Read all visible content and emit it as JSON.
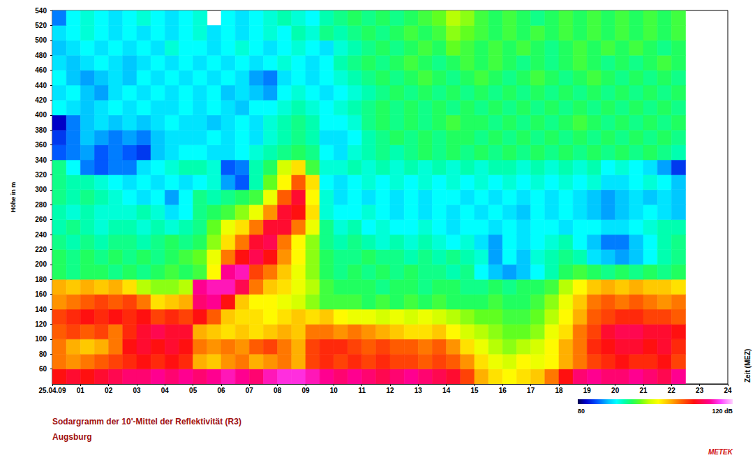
{
  "chart_data": {
    "type": "heatmap",
    "title": "Sodargramm der 10'-Mittel der Reflektivität (R3)",
    "subtitle": "Augsburg",
    "x_label": "Zeit (MEZ)",
    "y_label": "Höhe in m",
    "annotations": [
      "METEK"
    ],
    "grid": false,
    "xlim": [
      0,
      24
    ],
    "xticks": [
      {
        "value": 0,
        "label": "25.04.09"
      },
      {
        "value": 1,
        "label": "01"
      },
      {
        "value": 2,
        "label": "02"
      },
      {
        "value": 3,
        "label": "03"
      },
      {
        "value": 4,
        "label": "04"
      },
      {
        "value": 5,
        "label": "05"
      },
      {
        "value": 6,
        "label": "06"
      },
      {
        "value": 7,
        "label": "07"
      },
      {
        "value": 8,
        "label": "08"
      },
      {
        "value": 9,
        "label": "09"
      },
      10,
      11,
      12,
      13,
      14,
      15,
      16,
      17,
      18,
      19,
      20,
      21,
      22,
      23,
      24
    ],
    "ylim": [
      40,
      540
    ],
    "yticks": [
      60,
      80,
      100,
      120,
      140,
      160,
      180,
      200,
      220,
      240,
      260,
      280,
      300,
      320,
      340,
      360,
      380,
      400,
      420,
      440,
      460,
      480,
      500,
      520,
      540
    ],
    "colorbar": {
      "range": [
        80,
        120
      ],
      "ticks": [
        80,
        {
          "value": 120,
          "label": "120 dB"
        }
      ]
    },
    "x": [
      0,
      0.5,
      1,
      1.5,
      2,
      2.5,
      3,
      3.5,
      4,
      4.5,
      5,
      5.5,
      6,
      6.5,
      7,
      7.5,
      8,
      8.5,
      9,
      9.5,
      10,
      10.5,
      11,
      11.5,
      12,
      12.5,
      13,
      13.5,
      14,
      14.5,
      15,
      15.5,
      16,
      16.5,
      17,
      17.5,
      18,
      18.5,
      19,
      19.5,
      20,
      20.5,
      21,
      21.5,
      22
    ],
    "y": [
      40,
      60,
      80,
      100,
      120,
      140,
      160,
      180,
      200,
      220,
      240,
      260,
      280,
      300,
      320,
      340,
      360,
      380,
      400,
      420,
      440,
      460,
      480,
      500,
      520
    ],
    "values": [
      [
        110,
        111,
        110,
        111,
        112,
        113,
        113,
        114,
        113,
        114,
        113,
        114,
        115,
        114,
        113,
        115,
        116,
        116,
        115,
        114,
        113,
        114,
        113,
        112,
        113,
        114,
        113,
        112,
        111,
        108,
        104,
        102,
        101,
        102,
        103,
        106,
        110,
        113,
        114,
        113,
        113,
        114,
        113,
        112,
        114
      ],
      [
        106,
        105,
        106,
        107,
        108,
        109,
        110,
        109,
        110,
        109,
        104,
        103,
        105,
        106,
        104,
        105,
        106,
        104,
        108,
        109,
        108,
        109,
        108,
        109,
        108,
        108,
        107,
        108,
        107,
        105,
        102,
        100,
        99,
        101,
        100,
        101,
        104,
        106,
        108,
        109,
        110,
        109,
        109,
        110,
        108
      ],
      [
        106,
        104,
        103,
        104,
        106,
        110,
        111,
        110,
        111,
        110,
        106,
        105,
        106,
        105,
        107,
        108,
        106,
        104,
        108,
        109,
        109,
        108,
        107,
        108,
        107,
        107,
        106,
        107,
        105,
        102,
        100,
        98,
        97,
        98,
        99,
        101,
        104,
        106,
        109,
        110,
        111,
        111,
        110,
        111,
        109
      ],
      [
        107,
        108,
        107,
        108,
        106,
        109,
        111,
        112,
        111,
        111,
        104,
        103,
        102,
        103,
        102,
        103,
        104,
        103,
        106,
        106,
        105,
        106,
        105,
        104,
        103,
        102,
        102,
        103,
        101,
        99,
        98,
        97,
        96,
        96,
        97,
        100,
        102,
        106,
        108,
        111,
        112,
        112,
        111,
        111,
        110
      ],
      [
        108,
        109,
        110,
        109,
        110,
        109,
        110,
        108,
        109,
        108,
        110,
        107,
        103,
        102,
        102,
        101,
        102,
        103,
        102,
        103,
        101,
        100,
        100,
        99,
        100,
        99,
        100,
        99,
        98,
        97,
        96,
        96,
        95,
        95,
        96,
        98,
        101,
        104,
        107,
        108,
        109,
        109,
        108,
        108,
        107
      ],
      [
        105,
        106,
        107,
        108,
        107,
        108,
        106,
        102,
        103,
        104,
        113,
        114,
        110,
        103,
        101,
        101,
        100,
        99,
        97,
        95,
        95,
        95,
        94,
        95,
        94,
        95,
        94,
        95,
        94,
        94,
        94,
        95,
        94,
        94,
        95,
        97,
        100,
        103,
        106,
        107,
        106,
        107,
        106,
        105,
        106
      ],
      [
        104,
        103,
        104,
        103,
        104,
        102,
        98,
        97,
        97,
        98,
        114,
        115,
        115,
        112,
        106,
        103,
        102,
        100,
        98,
        95,
        94,
        94,
        94,
        93,
        94,
        94,
        93,
        94,
        94,
        93,
        93,
        94,
        93,
        94,
        94,
        95,
        98,
        101,
        103,
        104,
        103,
        104,
        103,
        103,
        102
      ],
      [
        94,
        93,
        94,
        94,
        93,
        94,
        93,
        94,
        95,
        94,
        95,
        101,
        114,
        115,
        108,
        106,
        103,
        100,
        97,
        94,
        93,
        94,
        93,
        94,
        93,
        94,
        93,
        93,
        92,
        93,
        90,
        88,
        87,
        88,
        90,
        92,
        94,
        95,
        94,
        93,
        94,
        93,
        94,
        93,
        94
      ],
      [
        94,
        93,
        94,
        93,
        94,
        93,
        94,
        93,
        94,
        95,
        96,
        100,
        106,
        110,
        112,
        110,
        105,
        101,
        97,
        94,
        93,
        93,
        94,
        93,
        93,
        92,
        93,
        92,
        93,
        92,
        91,
        87,
        90,
        88,
        91,
        92,
        93,
        92,
        89,
        88,
        87,
        88,
        90,
        92,
        93
      ],
      [
        93,
        92,
        93,
        92,
        93,
        93,
        92,
        93,
        94,
        93,
        94,
        97,
        102,
        106,
        111,
        112,
        106,
        101,
        97,
        93,
        92,
        93,
        92,
        91,
        92,
        91,
        92,
        91,
        90,
        91,
        89,
        87,
        90,
        89,
        90,
        91,
        92,
        90,
        88,
        86,
        86,
        88,
        90,
        92,
        93
      ],
      [
        92,
        93,
        92,
        91,
        92,
        92,
        91,
        92,
        91,
        92,
        93,
        96,
        100,
        102,
        106,
        111,
        111,
        106,
        100,
        93,
        91,
        92,
        90,
        91,
        90,
        90,
        91,
        90,
        89,
        90,
        90,
        89,
        90,
        89,
        90,
        90,
        89,
        90,
        90,
        89,
        89,
        90,
        91,
        92,
        92
      ],
      [
        92,
        91,
        92,
        91,
        91,
        91,
        92,
        91,
        89,
        90,
        93,
        94,
        95,
        97,
        100,
        105,
        111,
        110,
        102,
        91,
        90,
        90,
        91,
        90,
        89,
        90,
        89,
        90,
        89,
        90,
        89,
        90,
        89,
        88,
        90,
        89,
        90,
        89,
        88,
        87,
        88,
        89,
        90,
        89,
        88
      ],
      [
        93,
        92,
        93,
        92,
        91,
        90,
        89,
        90,
        87,
        90,
        93,
        92,
        93,
        94,
        95,
        100,
        107,
        111,
        101,
        91,
        89,
        90,
        89,
        90,
        89,
        90,
        89,
        90,
        90,
        89,
        90,
        89,
        90,
        89,
        90,
        89,
        90,
        89,
        88,
        87,
        88,
        89,
        88,
        89,
        88
      ],
      [
        93,
        92,
        92,
        91,
        90,
        89,
        90,
        89,
        90,
        89,
        90,
        91,
        87,
        85,
        92,
        96,
        101,
        107,
        102,
        90,
        89,
        90,
        91,
        90,
        91,
        90,
        91,
        90,
        91,
        90,
        91,
        90,
        91,
        90,
        91,
        90,
        91,
        90,
        91,
        89,
        89,
        90,
        91,
        90,
        88
      ],
      [
        93,
        90,
        86,
        85,
        86,
        86,
        89,
        90,
        91,
        92,
        92,
        91,
        85,
        86,
        92,
        94,
        99,
        102,
        95,
        91,
        91,
        92,
        91,
        92,
        91,
        92,
        91,
        92,
        91,
        92,
        91,
        92,
        92,
        91,
        92,
        91,
        92,
        91,
        92,
        90,
        91,
        90,
        89,
        87,
        84
      ],
      [
        85,
        86,
        87,
        85,
        86,
        85,
        84,
        88,
        89,
        90,
        90,
        89,
        89,
        90,
        91,
        92,
        93,
        94,
        93,
        90,
        89,
        91,
        92,
        93,
        92,
        93,
        94,
        93,
        94,
        93,
        94,
        93,
        94,
        93,
        94,
        93,
        94,
        93,
        94,
        93,
        94,
        93,
        94,
        93,
        92
      ],
      [
        84,
        86,
        88,
        87,
        86,
        87,
        86,
        88,
        89,
        89,
        89,
        90,
        89,
        90,
        89,
        91,
        92,
        93,
        92,
        89,
        89,
        90,
        92,
        93,
        94,
        93,
        94,
        93,
        94,
        94,
        93,
        94,
        93,
        94,
        93,
        94,
        93,
        94,
        93,
        94,
        93,
        94,
        93,
        94,
        93
      ],
      [
        82,
        86,
        88,
        89,
        88,
        89,
        88,
        89,
        90,
        89,
        89,
        88,
        89,
        90,
        89,
        91,
        92,
        93,
        92,
        90,
        90,
        91,
        93,
        94,
        93,
        94,
        93,
        94,
        95,
        94,
        94,
        93,
        94,
        93,
        94,
        93,
        94,
        95,
        94,
        93,
        94,
        93,
        94,
        93,
        94
      ],
      [
        90,
        89,
        88,
        89,
        90,
        89,
        90,
        89,
        89,
        90,
        89,
        90,
        89,
        88,
        90,
        90,
        91,
        92,
        91,
        90,
        91,
        92,
        93,
        94,
        93,
        94,
        93,
        94,
        93,
        94,
        93,
        94,
        93,
        94,
        93,
        94,
        93,
        94,
        93,
        94,
        93,
        94,
        93,
        94,
        93
      ],
      [
        89,
        90,
        88,
        87,
        89,
        90,
        89,
        90,
        89,
        90,
        89,
        90,
        88,
        89,
        88,
        87,
        90,
        91,
        90,
        89,
        90,
        91,
        92,
        93,
        94,
        93,
        94,
        93,
        94,
        93,
        94,
        93,
        94,
        93,
        94,
        93,
        94,
        93,
        94,
        93,
        94,
        93,
        94,
        93,
        94
      ],
      [
        90,
        88,
        87,
        88,
        89,
        88,
        90,
        89,
        90,
        89,
        90,
        89,
        90,
        89,
        87,
        86,
        89,
        90,
        89,
        90,
        91,
        92,
        93,
        94,
        93,
        94,
        95,
        94,
        93,
        94,
        95,
        94,
        93,
        94,
        95,
        94,
        93,
        94,
        95,
        94,
        93,
        94,
        93,
        94,
        93
      ],
      [
        89,
        88,
        89,
        90,
        89,
        88,
        89,
        90,
        89,
        90,
        89,
        90,
        89,
        90,
        89,
        90,
        91,
        90,
        89,
        90,
        92,
        93,
        94,
        93,
        94,
        95,
        94,
        93,
        94,
        95,
        94,
        95,
        94,
        93,
        94,
        93,
        94,
        95,
        94,
        93,
        94,
        93,
        94,
        95,
        94
      ],
      [
        88,
        89,
        90,
        89,
        90,
        89,
        90,
        89,
        91,
        90,
        90,
        89,
        90,
        91,
        90,
        89,
        90,
        91,
        90,
        89,
        91,
        92,
        93,
        94,
        93,
        94,
        95,
        94,
        96,
        95,
        94,
        95,
        94,
        95,
        94,
        93,
        94,
        95,
        94,
        95,
        94,
        95,
        94,
        93,
        94
      ],
      [
        89,
        90,
        91,
        90,
        89,
        90,
        89,
        90,
        89,
        90,
        91,
        89,
        90,
        89,
        90,
        91,
        90,
        92,
        91,
        93,
        92,
        93,
        94,
        93,
        94,
        95,
        94,
        95,
        97,
        96,
        95,
        94,
        95,
        94,
        95,
        94,
        95,
        94,
        95,
        94,
        95,
        94,
        95,
        94,
        95
      ],
      [
        86,
        90,
        91,
        90,
        89,
        90,
        91,
        90,
        89,
        90,
        91,
        null,
        90,
        89,
        90,
        91,
        92,
        91,
        90,
        92,
        93,
        94,
        93,
        94,
        93,
        94,
        95,
        96,
        98,
        97,
        95,
        94,
        95,
        94,
        93,
        94,
        95,
        94,
        95,
        94,
        95,
        94,
        95,
        94,
        95
      ]
    ]
  }
}
